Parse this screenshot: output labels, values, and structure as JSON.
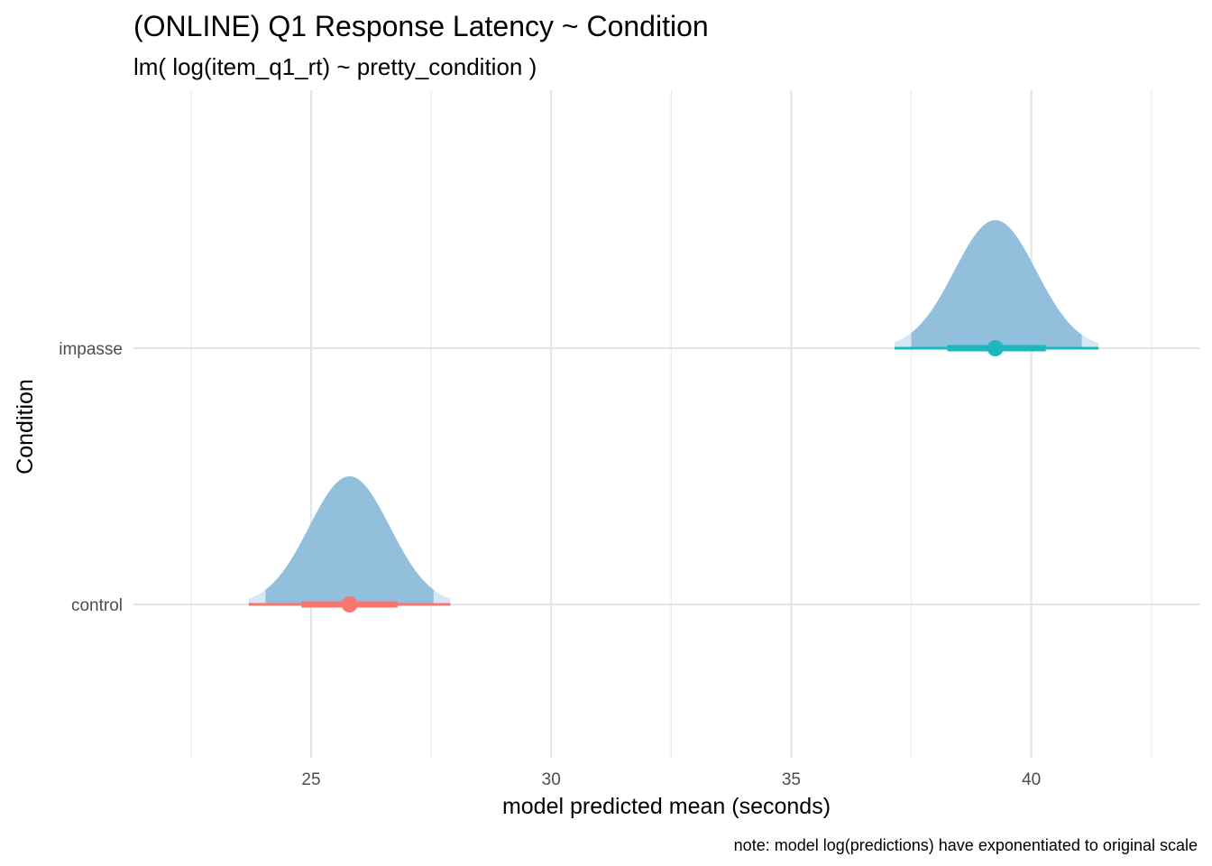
{
  "chart_data": {
    "type": "halfeye",
    "title": "(ONLINE) Q1 Response Latency ~ Condition",
    "subtitle": "lm( log(item_q1_rt) ~ pretty_condition )",
    "xlabel": "model predicted mean (seconds)",
    "ylabel": "Condition",
    "caption": "note: model log(predictions) have exponentiated to original scale",
    "xlim": [
      21.3,
      43.5
    ],
    "x_ticks": [
      25,
      30,
      35,
      40
    ],
    "x_minor_ticks": [
      22.5,
      27.5,
      32.5,
      37.5,
      42.5
    ],
    "categories": [
      "control",
      "impasse"
    ],
    "grid": true,
    "legend": "none",
    "colors": {
      "density_inner": "#92bfdb",
      "density_outer": "#d5e6f4",
      "control": "#f8766d",
      "impasse": "#1bb9bd",
      "grid": "#e5e5e5"
    },
    "series": [
      {
        "category": "control",
        "point": 25.8,
        "interval_66": [
          24.8,
          26.8
        ],
        "interval_95": [
          23.7,
          27.9
        ],
        "density_inner": [
          24.05,
          27.55
        ],
        "density_outer": [
          23.7,
          27.9
        ],
        "density_sd": 0.84
      },
      {
        "category": "impasse",
        "point": 39.25,
        "interval_66": [
          38.25,
          40.3
        ],
        "interval_95": [
          37.15,
          41.4
        ],
        "density_inner": [
          37.5,
          41.05
        ],
        "density_outer": [
          37.15,
          41.4
        ],
        "density_sd": 0.85
      }
    ]
  }
}
